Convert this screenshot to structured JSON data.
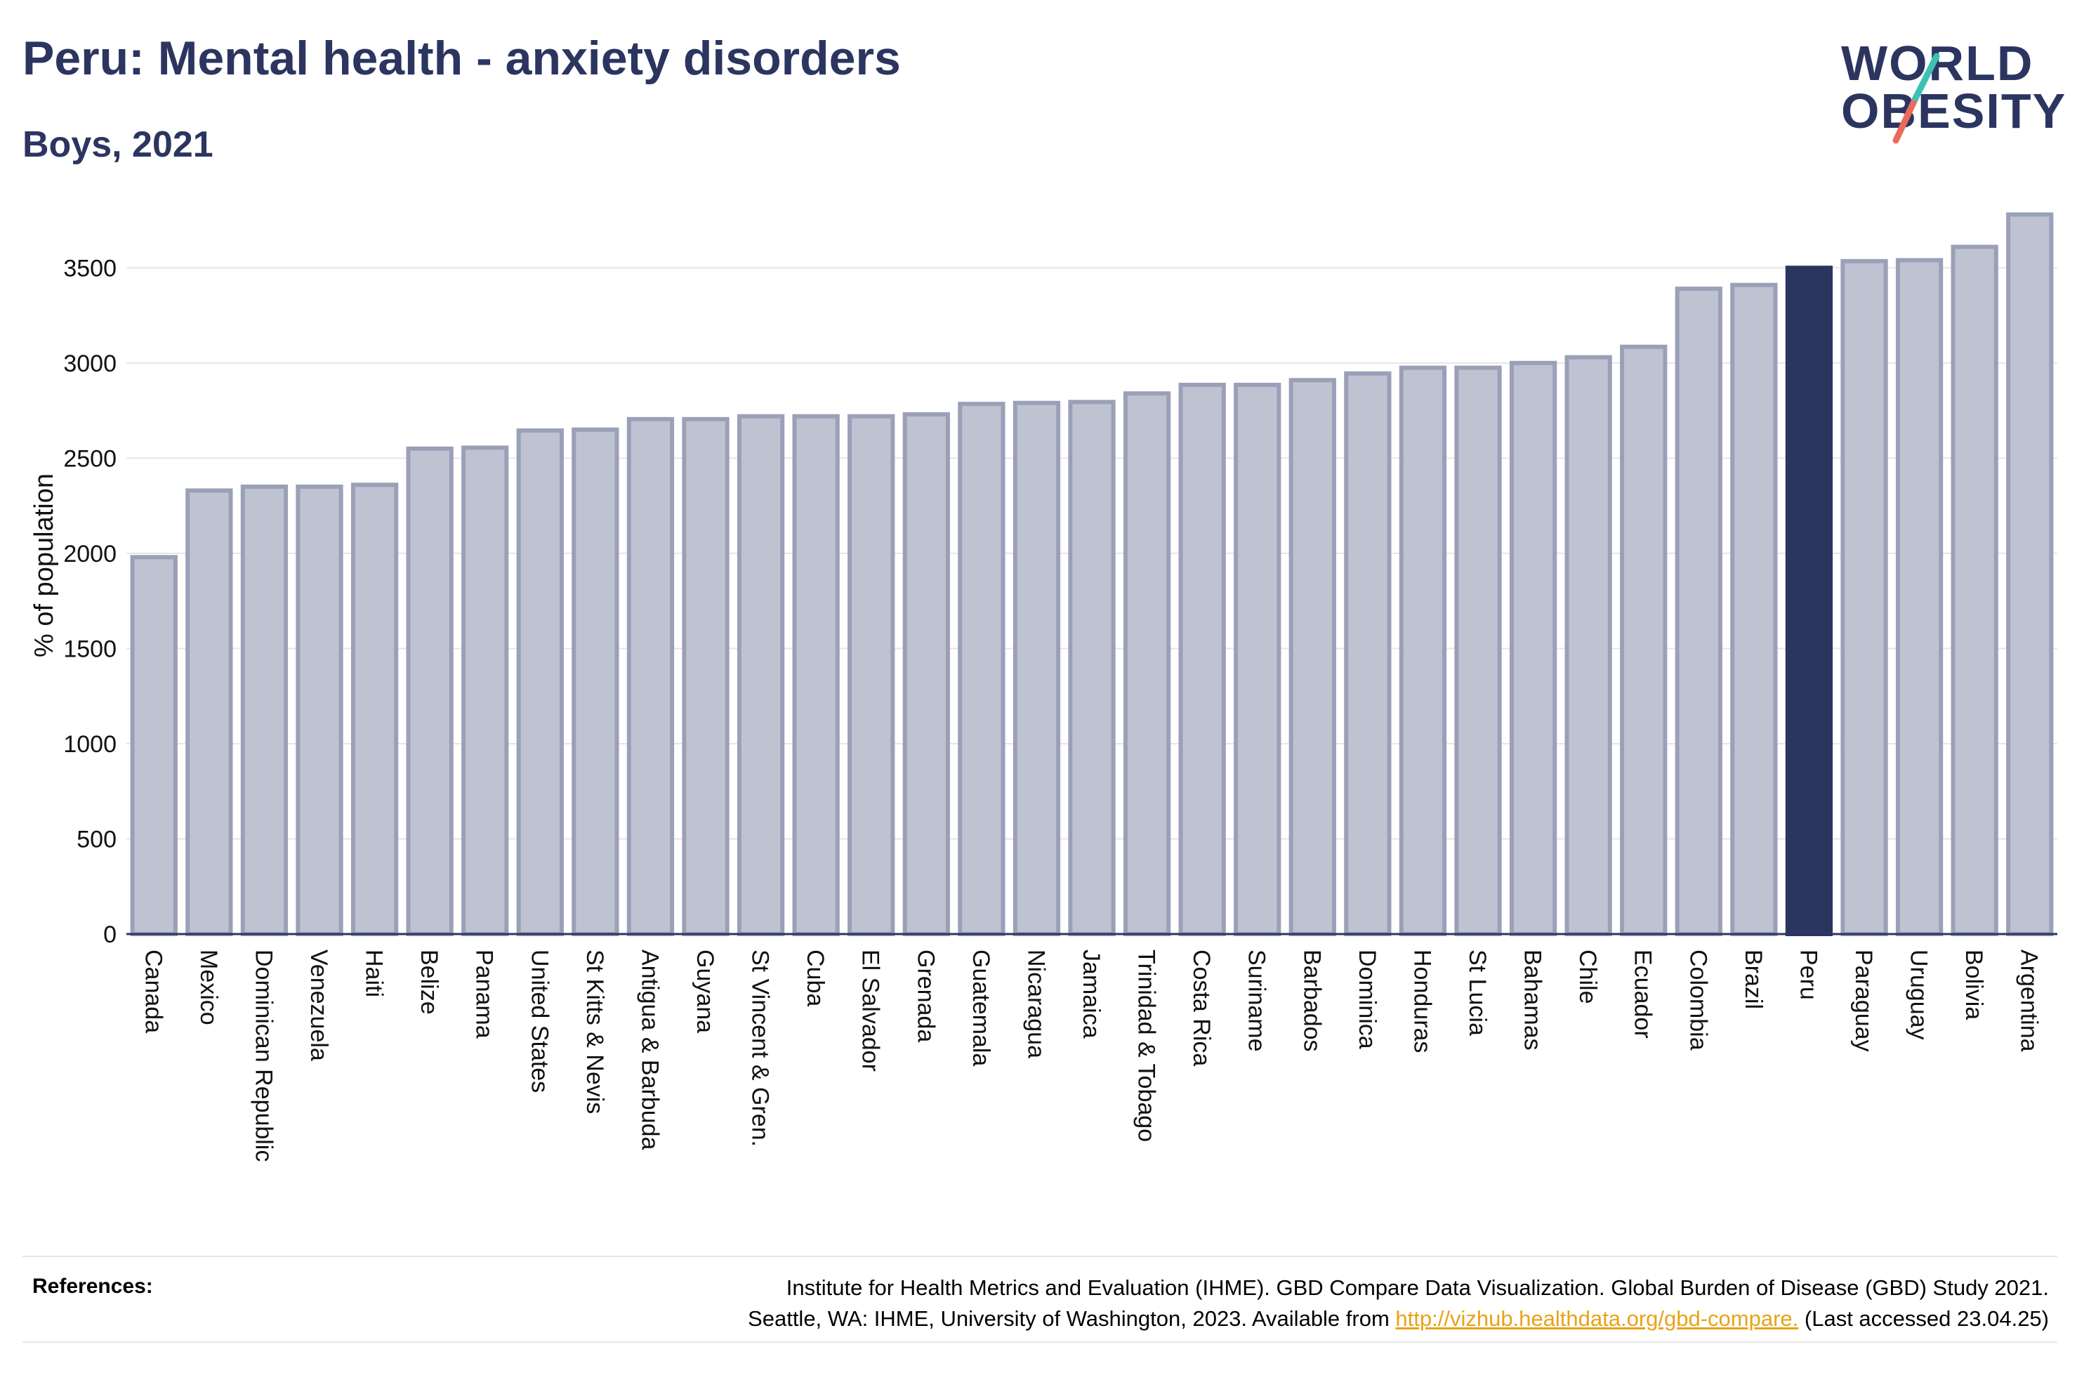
{
  "header": {
    "title": "Peru: Mental health - anxiety disorders",
    "subtitle": "Boys, 2021"
  },
  "logo": {
    "line1": "WORLD",
    "line2": "OBESITY"
  },
  "colors": {
    "bar": "#bfc2d0",
    "bar_border": "#9aa0b8",
    "highlight": "#2b3560",
    "grid": "#e6e6e6",
    "axis": "#2b3560",
    "logo_teal": "#3ec1b5",
    "logo_coral": "#ea6b5a"
  },
  "chart_data": {
    "type": "bar",
    "title": "Peru: Mental health - anxiety disorders",
    "subtitle": "Boys, 2021",
    "ylabel": "% of population",
    "xlabel": "",
    "ylim": [
      0,
      3800
    ],
    "yticks": [
      0,
      500,
      1000,
      1500,
      2000,
      2500,
      3000,
      3500
    ],
    "grid": true,
    "highlight": "Peru",
    "categories": [
      "Canada",
      "Mexico",
      "Dominican Republic",
      "Venezuela",
      "Haiti",
      "Belize",
      "Panama",
      "United States",
      "St Kitts & Nevis",
      "Antigua & Barbuda",
      "Guyana",
      "St Vincent & Gren.",
      "Cuba",
      "El Salvador",
      "Grenada",
      "Guatemala",
      "Nicaragua",
      "Jamaica",
      "Trinidad & Tobago",
      "Costa Rica",
      "Suriname",
      "Barbados",
      "Dominica",
      "Honduras",
      "St Lucia",
      "Bahamas",
      "Chile",
      "Ecuador",
      "Colombia",
      "Brazil",
      "Peru",
      "Paraguay",
      "Uruguay",
      "Bolivia",
      "Argentina"
    ],
    "values": [
      1980,
      2330,
      2350,
      2350,
      2360,
      2550,
      2555,
      2645,
      2650,
      2705,
      2705,
      2720,
      2720,
      2720,
      2730,
      2785,
      2790,
      2795,
      2840,
      2885,
      2885,
      2910,
      2945,
      2975,
      2975,
      3000,
      3030,
      3085,
      3390,
      3410,
      3500,
      3535,
      3540,
      3610,
      3780
    ]
  },
  "references": {
    "label": "References:",
    "line1": "Institute for Health Metrics and Evaluation (IHME). GBD Compare Data Visualization. Global Burden of Disease (GBD) Study 2021.",
    "line2_prefix": "Seattle, WA: IHME, University of Washington, 2023. Available from ",
    "link": "http://vizhub.healthdata.org/gbd-compare.",
    "line2_suffix": " (Last accessed 23.04.25)"
  }
}
